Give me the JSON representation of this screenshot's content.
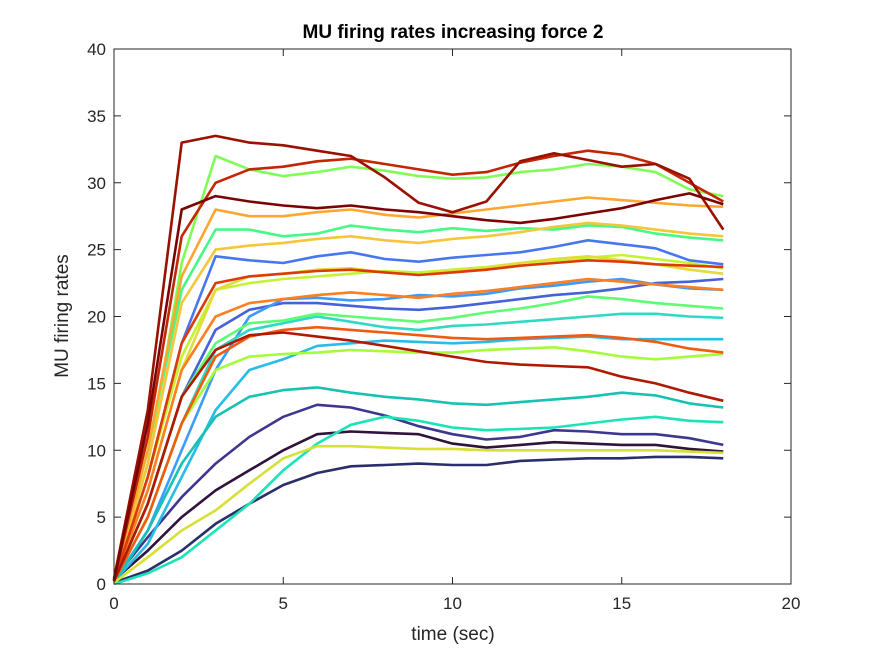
{
  "chart_data": {
    "type": "line",
    "title": "MU firing rates increasing force 2",
    "xlabel": "time (sec)",
    "ylabel": "MU firing rates",
    "xlim": [
      0,
      20
    ],
    "ylim": [
      0,
      40
    ],
    "xticks": [
      0,
      5,
      10,
      15,
      20
    ],
    "yticks": [
      0,
      5,
      10,
      15,
      20,
      25,
      30,
      35,
      40
    ],
    "grid": false,
    "legend": "none",
    "box": true,
    "series": [
      {
        "color": "#30123b",
        "x": [
          0,
          1,
          2,
          3,
          4,
          5,
          6,
          7,
          8,
          9,
          10,
          11,
          12,
          13,
          14,
          15,
          16,
          17,
          18
        ],
        "y": [
          0.3,
          2.5,
          5,
          7,
          8.5,
          10,
          11.2,
          11.4,
          11.3,
          11.2,
          10.5,
          10.2,
          10.4,
          10.6,
          10.5,
          10.4,
          10.4,
          10.1,
          9.9
        ]
      },
      {
        "color": "#3e378f",
        "x": [
          0,
          1,
          2,
          3,
          4,
          5,
          6,
          7,
          8,
          9,
          10,
          11,
          12,
          13,
          14,
          15,
          16,
          17,
          18
        ],
        "y": [
          0.4,
          3.5,
          6.5,
          9,
          11,
          12.5,
          13.4,
          13.2,
          12.6,
          11.8,
          11.2,
          10.8,
          11,
          11.5,
          11.4,
          11.2,
          11.2,
          10.9,
          10.4
        ]
      },
      {
        "color": "#2a2f6b",
        "x": [
          0,
          1,
          2,
          3,
          4,
          5,
          6,
          7,
          8,
          9,
          10,
          11,
          12,
          13,
          14,
          15,
          16,
          17,
          18
        ],
        "y": [
          0.1,
          1,
          2.5,
          4.5,
          6,
          7.4,
          8.3,
          8.8,
          8.9,
          9,
          8.9,
          8.9,
          9.2,
          9.3,
          9.4,
          9.4,
          9.5,
          9.5,
          9.4
        ]
      },
      {
        "color": "#4662d7",
        "x": [
          0,
          1,
          2,
          3,
          4,
          5,
          6,
          7,
          8,
          9,
          10,
          11,
          12,
          13,
          14,
          15,
          16,
          17,
          18
        ],
        "y": [
          0.3,
          6,
          14,
          19,
          20.5,
          21,
          21,
          20.8,
          20.6,
          20.5,
          20.7,
          21,
          21.3,
          21.6,
          21.8,
          22.1,
          22.5,
          22.6,
          22.8
        ]
      },
      {
        "color": "#4777ef",
        "x": [
          0,
          1,
          2,
          3,
          4,
          5,
          6,
          7,
          8,
          9,
          10,
          11,
          12,
          13,
          14,
          15,
          16,
          17,
          18
        ],
        "y": [
          0.2,
          8,
          18,
          24.5,
          24.2,
          24,
          24.5,
          24.8,
          24.3,
          24.1,
          24.4,
          24.6,
          24.8,
          25.2,
          25.7,
          25.4,
          25.1,
          24.2,
          23.9
        ]
      },
      {
        "color": "#3e9bfe",
        "x": [
          0,
          1,
          2,
          3,
          4,
          5,
          6,
          7,
          8,
          9,
          10,
          11,
          12,
          13,
          14,
          15,
          16,
          17,
          18
        ],
        "y": [
          0.2,
          4,
          10,
          16,
          20,
          21.3,
          21.4,
          21.2,
          21.3,
          21.6,
          21.5,
          21.7,
          22.1,
          22.3,
          22.6,
          22.8,
          22.4,
          22.1,
          22
        ]
      },
      {
        "color": "#28bceb",
        "x": [
          0,
          1,
          2,
          3,
          4,
          5,
          6,
          7,
          8,
          9,
          10,
          11,
          12,
          13,
          14,
          15,
          16,
          17,
          18
        ],
        "y": [
          0.2,
          3,
          8,
          13,
          16,
          16.8,
          17.8,
          18,
          18.2,
          18.1,
          18,
          18.1,
          18.3,
          18.4,
          18.5,
          18.3,
          18.3,
          18.3,
          18.3
        ]
      },
      {
        "color": "#1ae4b6",
        "x": [
          0,
          1,
          2,
          3,
          4,
          5,
          6,
          7,
          8,
          9,
          10,
          11,
          12,
          13,
          14,
          15,
          16,
          17,
          18
        ],
        "y": [
          0,
          0.8,
          2,
          4,
          6,
          8.5,
          10.5,
          11.9,
          12.5,
          12.2,
          11.7,
          11.5,
          11.6,
          11.7,
          12,
          12.3,
          12.5,
          12.2,
          12.1
        ]
      },
      {
        "color": "#17c2b3",
        "x": [
          0,
          1,
          2,
          3,
          4,
          5,
          6,
          7,
          8,
          9,
          10,
          11,
          12,
          13,
          14,
          15,
          16,
          17,
          18
        ],
        "y": [
          0.1,
          4,
          9,
          12.5,
          14,
          14.5,
          14.7,
          14.3,
          14,
          13.8,
          13.5,
          13.4,
          13.6,
          13.8,
          14,
          14.3,
          14.1,
          13.5,
          13.2
        ]
      },
      {
        "color": "#30d9c3",
        "x": [
          0,
          1,
          2,
          3,
          4,
          5,
          6,
          7,
          8,
          9,
          10,
          11,
          12,
          13,
          14,
          15,
          16,
          17,
          18
        ],
        "y": [
          0.2,
          5,
          12,
          17.5,
          19,
          19.5,
          20,
          19.6,
          19.2,
          19,
          19.3,
          19.4,
          19.6,
          19.8,
          20,
          20.2,
          20.2,
          20,
          19.9
        ]
      },
      {
        "color": "#46f884",
        "x": [
          0,
          1,
          2,
          3,
          4,
          5,
          6,
          7,
          8,
          9,
          10,
          11,
          12,
          13,
          14,
          15,
          16,
          17,
          18
        ],
        "y": [
          0.3,
          10,
          22,
          26.5,
          26.5,
          26,
          26.2,
          26.8,
          26.5,
          26.3,
          26.6,
          26.4,
          26.6,
          26.5,
          26.8,
          26.7,
          26.2,
          25.9,
          25.7
        ]
      },
      {
        "color": "#5ffc73",
        "x": [
          0,
          1,
          2,
          3,
          4,
          5,
          6,
          7,
          8,
          9,
          10,
          11,
          12,
          13,
          14,
          15,
          16,
          17,
          18
        ],
        "y": [
          0.2,
          6,
          14,
          18,
          19.5,
          19.7,
          20.2,
          20,
          19.8,
          19.6,
          19.9,
          20.3,
          20.6,
          21,
          21.5,
          21.3,
          21,
          20.8,
          20.6
        ]
      },
      {
        "color": "#7ffd55",
        "x": [
          0,
          1,
          2,
          3,
          4,
          5,
          6,
          7,
          8,
          9,
          10,
          11,
          12,
          13,
          14,
          15,
          16,
          17,
          18
        ],
        "y": [
          0.3,
          9,
          24,
          32,
          31,
          30.5,
          30.8,
          31.2,
          30.9,
          30.5,
          30.3,
          30.4,
          30.8,
          31,
          31.4,
          31.2,
          30.8,
          29.5,
          29
        ]
      },
      {
        "color": "#a4fc3b",
        "x": [
          0,
          1,
          2,
          3,
          4,
          5,
          6,
          7,
          8,
          9,
          10,
          11,
          12,
          13,
          14,
          15,
          16,
          17,
          18
        ],
        "y": [
          0.2,
          5,
          12,
          16,
          17,
          17.2,
          17.3,
          17.5,
          17.4,
          17.3,
          17.3,
          17.5,
          17.6,
          17.7,
          17.4,
          17,
          16.8,
          17,
          17.2
        ]
      },
      {
        "color": "#c4f334",
        "x": [
          0,
          1,
          2,
          3,
          4,
          5,
          6,
          7,
          8,
          9,
          10,
          11,
          12,
          13,
          14,
          15,
          16,
          17,
          18
        ],
        "y": [
          0.2,
          8,
          17,
          22,
          22.5,
          22.8,
          23,
          23.2,
          23.4,
          23.3,
          23.5,
          23.7,
          24,
          24.2,
          24.4,
          24.6,
          24.3,
          24,
          23.6
        ]
      },
      {
        "color": "#d6e035",
        "x": [
          0,
          1,
          2,
          3,
          4,
          5,
          6,
          7,
          8,
          9,
          10,
          11,
          12,
          13,
          14,
          15,
          16,
          17,
          18
        ],
        "y": [
          0.1,
          2,
          4,
          5.5,
          7.5,
          9.4,
          10.3,
          10.3,
          10.2,
          10.1,
          10.1,
          10,
          10,
          10,
          10,
          10,
          10,
          9.9,
          9.8
        ]
      },
      {
        "color": "#e2dc38",
        "x": [
          0,
          1,
          2,
          3,
          4,
          5,
          6,
          7,
          8,
          9,
          10,
          11,
          12,
          13,
          14,
          15,
          16,
          17,
          18
        ],
        "y": [
          0.3,
          7,
          16,
          22,
          23,
          23.2,
          23.5,
          23.6,
          23.3,
          23.1,
          23.4,
          23.6,
          24,
          24.3,
          24.5,
          24.2,
          23.9,
          23.5,
          23.2
        ]
      },
      {
        "color": "#f5c63a",
        "x": [
          0,
          1,
          2,
          3,
          4,
          5,
          6,
          7,
          8,
          9,
          10,
          11,
          12,
          13,
          14,
          15,
          16,
          17,
          18
        ],
        "y": [
          0.2,
          9,
          21,
          25,
          25.3,
          25.5,
          25.8,
          26,
          25.7,
          25.5,
          25.8,
          26,
          26.3,
          26.7,
          27,
          26.8,
          26.5,
          26.2,
          26
        ]
      },
      {
        "color": "#fea632",
        "x": [
          0,
          1,
          2,
          3,
          4,
          5,
          6,
          7,
          8,
          9,
          10,
          11,
          12,
          13,
          14,
          15,
          16,
          17,
          18
        ],
        "y": [
          0.3,
          10,
          23,
          28,
          27.5,
          27.5,
          27.8,
          28,
          27.6,
          27.4,
          27.7,
          28,
          28.3,
          28.6,
          28.9,
          28.7,
          28.5,
          28.3,
          28.2
        ]
      },
      {
        "color": "#fb8022",
        "x": [
          0,
          1,
          2,
          3,
          4,
          5,
          6,
          7,
          8,
          9,
          10,
          11,
          12,
          13,
          14,
          15,
          16,
          17,
          18
        ],
        "y": [
          0.3,
          7,
          16,
          20,
          21,
          21.3,
          21.6,
          21.8,
          21.6,
          21.4,
          21.7,
          21.9,
          22.2,
          22.5,
          22.8,
          22.6,
          22.4,
          22.2,
          22
        ]
      },
      {
        "color": "#f05b12",
        "x": [
          0,
          1,
          2,
          3,
          4,
          5,
          6,
          7,
          8,
          9,
          10,
          11,
          12,
          13,
          14,
          15,
          16,
          17,
          18
        ],
        "y": [
          0.2,
          5,
          12,
          17,
          18.5,
          19,
          19.2,
          19,
          18.8,
          18.6,
          18.4,
          18.3,
          18.4,
          18.5,
          18.6,
          18.4,
          18.1,
          17.6,
          17.3
        ]
      },
      {
        "color": "#dc3b07",
        "x": [
          0,
          1,
          2,
          3,
          4,
          5,
          6,
          7,
          8,
          9,
          10,
          11,
          12,
          13,
          14,
          15,
          16,
          17,
          18
        ],
        "y": [
          0.2,
          8,
          18,
          22.5,
          23,
          23.2,
          23.4,
          23.5,
          23.3,
          23.1,
          23.3,
          23.5,
          23.8,
          24,
          24.2,
          24.1,
          23.9,
          23.8,
          23.7
        ]
      },
      {
        "color": "#c42503",
        "x": [
          0,
          1,
          2,
          3,
          4,
          5,
          6,
          7,
          8,
          9,
          10,
          11,
          12,
          13,
          14,
          15,
          16,
          17,
          18
        ],
        "y": [
          0.3,
          11,
          26,
          30,
          31,
          31.2,
          31.6,
          31.8,
          31.4,
          31,
          30.6,
          30.8,
          31.5,
          32,
          32.4,
          32.1,
          31.4,
          30,
          28.6
        ]
      },
      {
        "color": "#b01901",
        "x": [
          0,
          1,
          2,
          3,
          4,
          5,
          6,
          7,
          8,
          9,
          10,
          11,
          12,
          13,
          14,
          15,
          16,
          17,
          18
        ],
        "y": [
          0.2,
          6,
          14,
          17.5,
          18.6,
          18.8,
          18.5,
          18.2,
          17.8,
          17.4,
          17,
          16.6,
          16.4,
          16.3,
          16.2,
          15.5,
          15,
          14.3,
          13.7
        ]
      },
      {
        "color": "#9a1001",
        "x": [
          0,
          1,
          2,
          3,
          4,
          5,
          6,
          7,
          8,
          9,
          10,
          11,
          12,
          13,
          14,
          15,
          16,
          17,
          18
        ],
        "y": [
          0.4,
          13,
          33,
          33.5,
          33,
          32.8,
          32.4,
          32,
          30.4,
          28.5,
          27.8,
          28.6,
          31.6,
          32.2,
          31.7,
          31.2,
          31.4,
          30.3,
          26.5
        ]
      },
      {
        "color": "#7a0403",
        "x": [
          0,
          1,
          2,
          3,
          4,
          5,
          6,
          7,
          8,
          9,
          10,
          11,
          12,
          13,
          14,
          15,
          16,
          17,
          18
        ],
        "y": [
          0.3,
          12,
          28,
          29,
          28.6,
          28.3,
          28.1,
          28.3,
          28,
          27.8,
          27.5,
          27.2,
          27,
          27.3,
          27.7,
          28.1,
          28.7,
          29.2,
          28.4
        ]
      }
    ]
  }
}
